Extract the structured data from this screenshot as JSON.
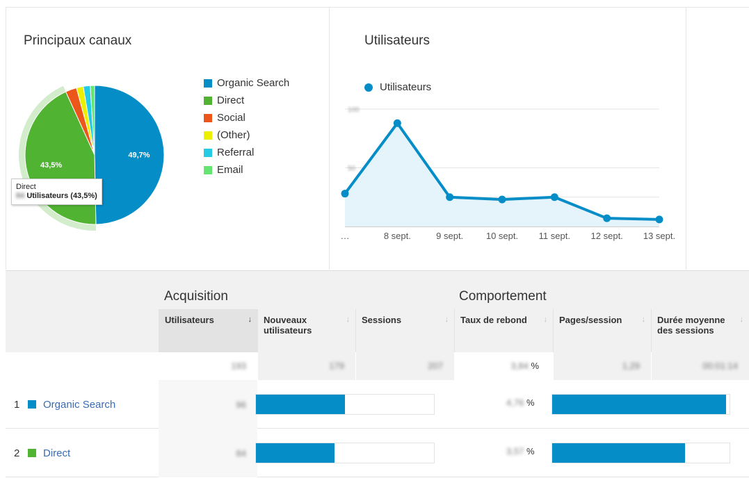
{
  "channels_panel": {
    "title": "Principaux canaux",
    "legend": [
      {
        "label": "Organic Search",
        "color": "#058dc7"
      },
      {
        "label": "Direct",
        "color": "#50b432"
      },
      {
        "label": "Social",
        "color": "#ed561b"
      },
      {
        "label": "(Other)",
        "color": "#edef00"
      },
      {
        "label": "Referral",
        "color": "#24cbe5"
      },
      {
        "label": "Email",
        "color": "#64e572"
      }
    ],
    "tooltip": {
      "title": "Direct",
      "value_blurred": "84",
      "text": "Utilisateurs (43,5%)"
    }
  },
  "chart_data": [
    {
      "type": "pie",
      "title": "Principaux canaux",
      "slices": [
        {
          "label": "Organic Search",
          "value": 49.7,
          "display": "49,7%",
          "color": "#058dc7"
        },
        {
          "label": "Direct",
          "value": 43.5,
          "display": "43,5%",
          "color": "#50b432"
        },
        {
          "label": "Social",
          "value": 2.6,
          "color": "#ed561b"
        },
        {
          "label": "(Other)",
          "value": 1.6,
          "color": "#edef00"
        },
        {
          "label": "Referral",
          "value": 1.6,
          "color": "#24cbe5"
        },
        {
          "label": "Email",
          "value": 1.0,
          "color": "#64e572"
        }
      ],
      "highlighted": "Direct"
    },
    {
      "type": "line",
      "title": "Utilisateurs",
      "series": [
        {
          "name": "Utilisateurs",
          "color": "#058dc7",
          "values": [
            28,
            88,
            25,
            23,
            25,
            7,
            6
          ]
        }
      ],
      "categories": [
        "…",
        "8 sept.",
        "9 sept.",
        "10 sept.",
        "11 sept.",
        "12 sept.",
        "13 sept."
      ],
      "y_ticks_blurred": [
        "100",
        "50"
      ],
      "ylim": [
        0,
        100
      ],
      "grid": true
    }
  ],
  "table": {
    "groups": [
      {
        "label": "Acquisition"
      },
      {
        "label": "Comportement"
      }
    ],
    "columns": [
      {
        "label": "Utilisateurs",
        "sorted": true,
        "arrow": "↓"
      },
      {
        "label": "Nouveaux utilisateurs",
        "arrow": "↓"
      },
      {
        "label": "Sessions",
        "arrow": "↓"
      },
      {
        "label": "Taux de rebond",
        "arrow": "↓"
      },
      {
        "label": "Pages/session",
        "arrow": "↓"
      },
      {
        "label": "Durée moyenne des sessions",
        "arrow": "↓"
      }
    ],
    "totals": {
      "users": "193",
      "new_users": "179",
      "sessions": "207",
      "bounce": "3,84",
      "bounce_unit": "%",
      "pages": "1,29",
      "duration": "00:01:14"
    },
    "rows": [
      {
        "rank": "1",
        "label": "Organic Search",
        "color": "#058dc7",
        "users": "96",
        "users_bar": 0.5,
        "bounce": "4,76",
        "bounce_unit": "%",
        "pages_bar": 0.98
      },
      {
        "rank": "2",
        "label": "Direct",
        "color": "#50b432",
        "users": "84",
        "users_bar": 0.44,
        "bounce": "3,57",
        "bounce_unit": "%",
        "pages_bar": 0.75
      }
    ]
  }
}
